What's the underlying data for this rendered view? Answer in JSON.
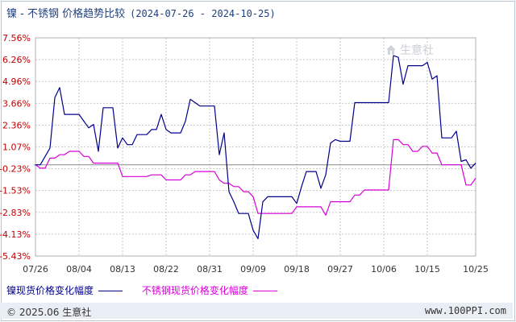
{
  "header": {
    "title": "镍 - 不锈钢 价格趋势比较",
    "date_range": "(2024-07-26 - 2024-10-25)"
  },
  "watermark": {
    "text": "生意社",
    "icon": "logo-house-icon"
  },
  "footer": {
    "copyright": "© 2025.06 生意社",
    "site": "www.100PPI.com"
  },
  "colors": {
    "nickel": "#00008b",
    "stainless": "#d800d8",
    "zero_line": "#888888",
    "grid": "#c8c8c8"
  },
  "chart_data": {
    "type": "line",
    "title": "镍 - 不锈钢 价格趋势比较",
    "y_ticks": [
      "7.56%",
      "6.26%",
      "4.96%",
      "3.66%",
      "2.36%",
      "1.07%",
      "-0.23%",
      "-1.53%",
      "-2.83%",
      "-4.13%",
      "-5.43%"
    ],
    "x_ticks": [
      "07/26",
      "08/04",
      "08/13",
      "08/22",
      "08/31",
      "09/09",
      "09/18",
      "09/27",
      "10/06",
      "10/15",
      "10/25"
    ],
    "ylim": [
      -5.43,
      7.56
    ],
    "xlim": [
      "2024-07-26",
      "2024-10-25"
    ],
    "grid": true,
    "legend_position": "bottom",
    "series": [
      {
        "name": "镍现货价格变化幅度",
        "color": "#00008b",
        "points": [
          [
            "2024-07-26",
            0.0
          ],
          [
            "2024-07-27",
            0.0
          ],
          [
            "2024-07-28",
            0.5
          ],
          [
            "2024-07-29",
            1.0
          ],
          [
            "2024-07-30",
            4.0
          ],
          [
            "2024-07-31",
            4.6
          ],
          [
            "2024-08-01",
            3.0
          ],
          [
            "2024-08-02",
            3.0
          ],
          [
            "2024-08-03",
            3.0
          ],
          [
            "2024-08-04",
            3.0
          ],
          [
            "2024-08-05",
            2.6
          ],
          [
            "2024-08-06",
            2.2
          ],
          [
            "2024-08-07",
            2.4
          ],
          [
            "2024-08-08",
            0.8
          ],
          [
            "2024-08-09",
            3.4
          ],
          [
            "2024-08-10",
            3.4
          ],
          [
            "2024-08-11",
            3.4
          ],
          [
            "2024-08-12",
            1.0
          ],
          [
            "2024-08-13",
            1.6
          ],
          [
            "2024-08-14",
            1.2
          ],
          [
            "2024-08-15",
            1.2
          ],
          [
            "2024-08-16",
            1.8
          ],
          [
            "2024-08-17",
            1.8
          ],
          [
            "2024-08-18",
            1.8
          ],
          [
            "2024-08-19",
            2.1
          ],
          [
            "2024-08-20",
            2.1
          ],
          [
            "2024-08-21",
            3.0
          ],
          [
            "2024-08-22",
            2.1
          ],
          [
            "2024-08-23",
            1.9
          ],
          [
            "2024-08-24",
            1.9
          ],
          [
            "2024-08-25",
            1.9
          ],
          [
            "2024-08-26",
            2.6
          ],
          [
            "2024-08-27",
            3.9
          ],
          [
            "2024-08-28",
            3.7
          ],
          [
            "2024-08-29",
            3.5
          ],
          [
            "2024-08-30",
            3.5
          ],
          [
            "2024-08-31",
            3.5
          ],
          [
            "2024-09-01",
            3.5
          ],
          [
            "2024-09-02",
            0.6
          ],
          [
            "2024-09-03",
            1.9
          ],
          [
            "2024-09-04",
            -1.6
          ],
          [
            "2024-09-05",
            -2.2
          ],
          [
            "2024-09-06",
            -2.9
          ],
          [
            "2024-09-07",
            -2.9
          ],
          [
            "2024-09-08",
            -2.9
          ],
          [
            "2024-09-09",
            -3.9
          ],
          [
            "2024-09-10",
            -4.4
          ],
          [
            "2024-09-11",
            -2.2
          ],
          [
            "2024-09-12",
            -1.9
          ],
          [
            "2024-09-13",
            -1.9
          ],
          [
            "2024-09-14",
            -1.9
          ],
          [
            "2024-09-15",
            -1.9
          ],
          [
            "2024-09-16",
            -1.9
          ],
          [
            "2024-09-17",
            -1.9
          ],
          [
            "2024-09-18",
            -2.3
          ],
          [
            "2024-09-19",
            -1.3
          ],
          [
            "2024-09-20",
            -0.4
          ],
          [
            "2024-09-21",
            -0.4
          ],
          [
            "2024-09-22",
            -0.4
          ],
          [
            "2024-09-23",
            -1.4
          ],
          [
            "2024-09-24",
            -0.6
          ],
          [
            "2024-09-25",
            1.3
          ],
          [
            "2024-09-26",
            1.5
          ],
          [
            "2024-09-27",
            1.4
          ],
          [
            "2024-09-28",
            1.4
          ],
          [
            "2024-09-29",
            1.4
          ],
          [
            "2024-09-30",
            3.7
          ],
          [
            "2024-10-01",
            3.7
          ],
          [
            "2024-10-02",
            3.7
          ],
          [
            "2024-10-03",
            3.7
          ],
          [
            "2024-10-04",
            3.7
          ],
          [
            "2024-10-05",
            3.7
          ],
          [
            "2024-10-06",
            3.7
          ],
          [
            "2024-10-07",
            3.7
          ],
          [
            "2024-10-08",
            6.5
          ],
          [
            "2024-10-09",
            6.4
          ],
          [
            "2024-10-10",
            4.8
          ],
          [
            "2024-10-11",
            5.9
          ],
          [
            "2024-10-12",
            5.9
          ],
          [
            "2024-10-13",
            5.9
          ],
          [
            "2024-10-14",
            5.9
          ],
          [
            "2024-10-15",
            6.1
          ],
          [
            "2024-10-16",
            5.1
          ],
          [
            "2024-10-17",
            5.3
          ],
          [
            "2024-10-18",
            1.6
          ],
          [
            "2024-10-19",
            1.6
          ],
          [
            "2024-10-20",
            1.6
          ],
          [
            "2024-10-21",
            2.0
          ],
          [
            "2024-10-22",
            0.2
          ],
          [
            "2024-10-23",
            0.3
          ],
          [
            "2024-10-24",
            -0.2
          ],
          [
            "2024-10-25",
            0.1
          ]
        ]
      },
      {
        "name": "不锈钢现货价格变化幅度",
        "color": "#d800d8",
        "points": [
          [
            "2024-07-26",
            0.0
          ],
          [
            "2024-07-27",
            -0.2
          ],
          [
            "2024-07-28",
            -0.2
          ],
          [
            "2024-07-29",
            0.4
          ],
          [
            "2024-07-30",
            0.4
          ],
          [
            "2024-07-31",
            0.6
          ],
          [
            "2024-08-01",
            0.6
          ],
          [
            "2024-08-02",
            0.8
          ],
          [
            "2024-08-03",
            0.8
          ],
          [
            "2024-08-04",
            0.8
          ],
          [
            "2024-08-05",
            0.5
          ],
          [
            "2024-08-06",
            0.5
          ],
          [
            "2024-08-07",
            0.1
          ],
          [
            "2024-08-08",
            0.1
          ],
          [
            "2024-08-09",
            0.1
          ],
          [
            "2024-08-10",
            0.1
          ],
          [
            "2024-08-11",
            0.1
          ],
          [
            "2024-08-12",
            0.1
          ],
          [
            "2024-08-13",
            -0.7
          ],
          [
            "2024-08-14",
            -0.7
          ],
          [
            "2024-08-15",
            -0.7
          ],
          [
            "2024-08-16",
            -0.7
          ],
          [
            "2024-08-17",
            -0.7
          ],
          [
            "2024-08-18",
            -0.7
          ],
          [
            "2024-08-19",
            -0.6
          ],
          [
            "2024-08-20",
            -0.6
          ],
          [
            "2024-08-21",
            -0.6
          ],
          [
            "2024-08-22",
            -0.9
          ],
          [
            "2024-08-23",
            -0.9
          ],
          [
            "2024-08-24",
            -0.9
          ],
          [
            "2024-08-25",
            -0.9
          ],
          [
            "2024-08-26",
            -0.6
          ],
          [
            "2024-08-27",
            -0.6
          ],
          [
            "2024-08-28",
            -0.4
          ],
          [
            "2024-08-29",
            -0.4
          ],
          [
            "2024-08-30",
            -0.4
          ],
          [
            "2024-08-31",
            -0.4
          ],
          [
            "2024-09-01",
            -0.4
          ],
          [
            "2024-09-02",
            -0.9
          ],
          [
            "2024-09-03",
            -1.1
          ],
          [
            "2024-09-04",
            -1.1
          ],
          [
            "2024-09-05",
            -1.3
          ],
          [
            "2024-09-06",
            -1.3
          ],
          [
            "2024-09-07",
            -1.6
          ],
          [
            "2024-09-08",
            -1.6
          ],
          [
            "2024-09-09",
            -1.9
          ],
          [
            "2024-09-10",
            -2.9
          ],
          [
            "2024-09-11",
            -2.9
          ],
          [
            "2024-09-12",
            -2.9
          ],
          [
            "2024-09-13",
            -2.9
          ],
          [
            "2024-09-14",
            -2.9
          ],
          [
            "2024-09-15",
            -2.9
          ],
          [
            "2024-09-16",
            -2.9
          ],
          [
            "2024-09-17",
            -2.9
          ],
          [
            "2024-09-18",
            -2.5
          ],
          [
            "2024-09-19",
            -2.5
          ],
          [
            "2024-09-20",
            -2.5
          ],
          [
            "2024-09-21",
            -2.5
          ],
          [
            "2024-09-22",
            -2.5
          ],
          [
            "2024-09-23",
            -2.5
          ],
          [
            "2024-09-24",
            -3.0
          ],
          [
            "2024-09-25",
            -2.2
          ],
          [
            "2024-09-26",
            -2.2
          ],
          [
            "2024-09-27",
            -2.2
          ],
          [
            "2024-09-28",
            -2.2
          ],
          [
            "2024-09-29",
            -2.2
          ],
          [
            "2024-09-30",
            -1.8
          ],
          [
            "2024-10-01",
            -1.8
          ],
          [
            "2024-10-02",
            -1.5
          ],
          [
            "2024-10-03",
            -1.5
          ],
          [
            "2024-10-04",
            -1.5
          ],
          [
            "2024-10-05",
            -1.5
          ],
          [
            "2024-10-06",
            -1.5
          ],
          [
            "2024-10-07",
            -1.5
          ],
          [
            "2024-10-08",
            1.5
          ],
          [
            "2024-10-09",
            1.5
          ],
          [
            "2024-10-10",
            1.2
          ],
          [
            "2024-10-11",
            1.2
          ],
          [
            "2024-10-12",
            0.8
          ],
          [
            "2024-10-13",
            0.8
          ],
          [
            "2024-10-14",
            1.1
          ],
          [
            "2024-10-15",
            1.1
          ],
          [
            "2024-10-16",
            0.7
          ],
          [
            "2024-10-17",
            0.7
          ],
          [
            "2024-10-18",
            0.0
          ],
          [
            "2024-10-19",
            0.0
          ],
          [
            "2024-10-20",
            0.0
          ],
          [
            "2024-10-21",
            0.0
          ],
          [
            "2024-10-22",
            0.0
          ],
          [
            "2024-10-23",
            -1.2
          ],
          [
            "2024-10-24",
            -1.2
          ],
          [
            "2024-10-25",
            -0.8
          ]
        ]
      }
    ]
  }
}
